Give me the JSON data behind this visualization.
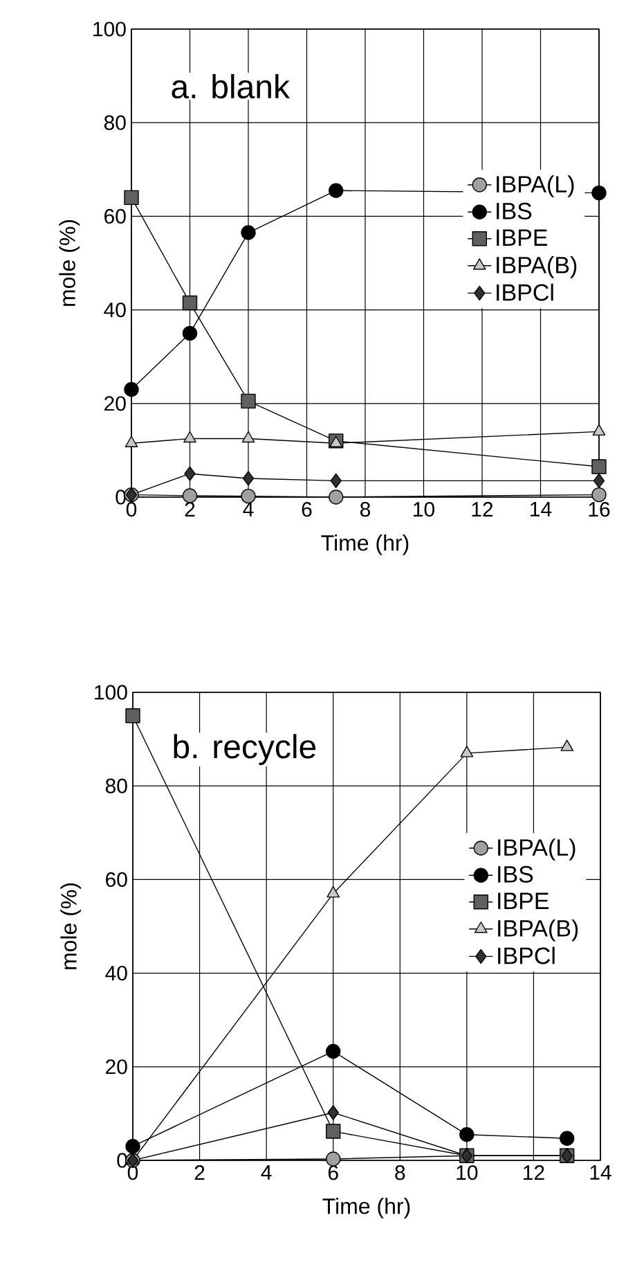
{
  "chart_data": [
    {
      "type": "line",
      "title": "a. blank",
      "xlabel": "Time (hr)",
      "ylabel": "mole (%)",
      "x": [
        0,
        2,
        4,
        7,
        16
      ],
      "series": [
        {
          "name": "IBPA(L)",
          "color": "#a0a0a0",
          "marker": "circle",
          "values": [
            0.5,
            0.3,
            0.2,
            0,
            0.5
          ]
        },
        {
          "name": "IBS",
          "color": "#000000",
          "marker": "circle",
          "values": [
            23,
            35,
            56.5,
            65.5,
            65
          ]
        },
        {
          "name": "IBPE",
          "color": "#606060",
          "marker": "square",
          "values": [
            64,
            41.5,
            20.5,
            12,
            6.5
          ]
        },
        {
          "name": "IBPA(B)",
          "color": "#c8c8c8",
          "marker": "triangle",
          "values": [
            11.5,
            12.5,
            12.5,
            11.5,
            14
          ]
        },
        {
          "name": "IBPCl",
          "color": "#303030",
          "marker": "diamond",
          "values": [
            0.5,
            5,
            4,
            3.5,
            3.5
          ]
        }
      ],
      "xlim": [
        0,
        16
      ],
      "ylim": [
        0,
        100
      ],
      "xticks": [
        0,
        2,
        4,
        6,
        8,
        10,
        12,
        14,
        16
      ],
      "yticks": [
        0,
        20,
        40,
        60,
        80,
        100
      ],
      "grid": true,
      "legend": "right",
      "line_style": "solid"
    },
    {
      "type": "line",
      "title": "b. recycle",
      "xlabel": "Time (hr)",
      "ylabel": "mole (%)",
      "x": [
        0,
        6,
        10,
        13
      ],
      "series": [
        {
          "name": "IBPA(L)",
          "color": "#a0a0a0",
          "marker": "circle",
          "values": [
            0,
            0.3,
            1,
            1
          ]
        },
        {
          "name": "IBS",
          "color": "#000000",
          "marker": "circle",
          "values": [
            3,
            23.3,
            5.5,
            4.7
          ]
        },
        {
          "name": "IBPE",
          "color": "#606060",
          "marker": "square",
          "values": [
            95,
            6.2,
            1,
            1
          ]
        },
        {
          "name": "IBPA(B)",
          "color": "#c8c8c8",
          "marker": "triangle",
          "values": [
            0,
            57,
            87,
            88.3
          ]
        },
        {
          "name": "IBPCl",
          "color": "#303030",
          "marker": "diamond",
          "values": [
            0,
            10.2,
            1,
            1
          ]
        }
      ],
      "xlim": [
        0,
        14
      ],
      "ylim": [
        0,
        100
      ],
      "xticks": [
        0,
        2,
        4,
        6,
        8,
        10,
        12,
        14
      ],
      "yticks": [
        0,
        20,
        40,
        60,
        80,
        100
      ],
      "grid": true,
      "legend": "right",
      "line_style": "solid"
    }
  ]
}
